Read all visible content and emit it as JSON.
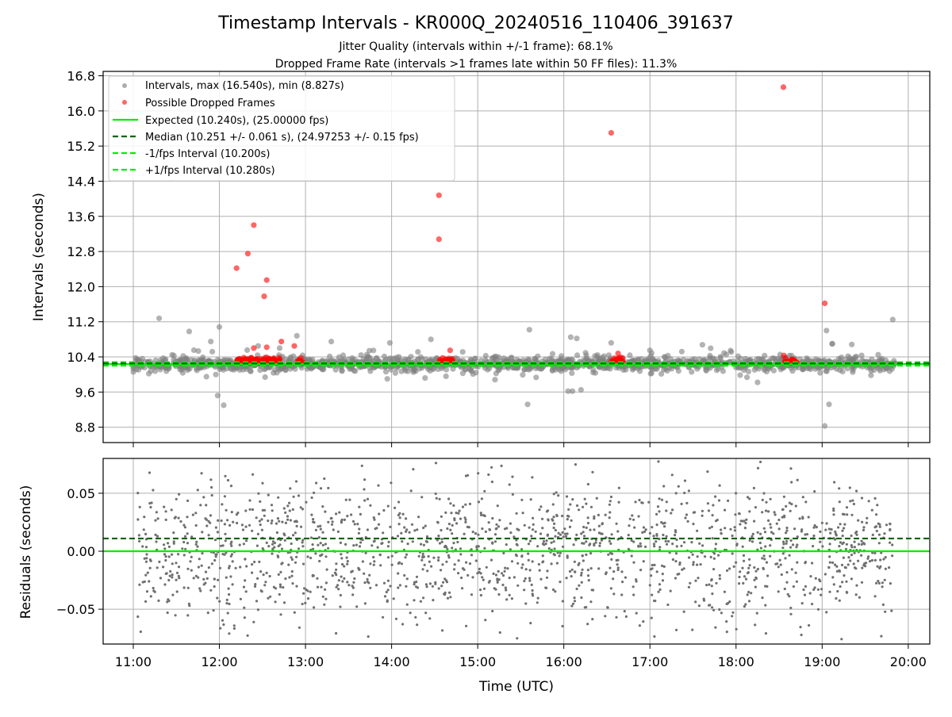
{
  "figure": {
    "title": "Timestamp Intervals - KR000Q_20240516_110406_391637",
    "subtitle_1": "Jitter Quality (intervals within +/-1 frame): 68.1%",
    "subtitle_2": "Dropped Frame Rate (intervals >1 frames late within 50 FF files): 11.3%"
  },
  "colors": {
    "interval_points": "#808080",
    "dropped_points": "#ff0000",
    "expected_line": "#00ee00",
    "median_line": "#006400",
    "fps_bounds": "#00ee00",
    "residual_points": "#707070",
    "grid": "#b0b0b0"
  },
  "chart_data": [
    {
      "type": "scatter",
      "ylabel": "Intervals (seconds)",
      "xlim": [
        10.65,
        20.25
      ],
      "ylim": [
        8.45,
        16.9
      ],
      "yticks": [
        8.8,
        9.6,
        10.4,
        11.2,
        12.0,
        12.8,
        13.6,
        14.4,
        15.2,
        16.0,
        16.8
      ],
      "ytick_labels": [
        "8.8",
        "9.6",
        "10.4",
        "11.2",
        "12.0",
        "12.8",
        "13.6",
        "14.4",
        "15.2",
        "16.0",
        "16.8"
      ],
      "grid": true,
      "legend_position": "top-left",
      "legend": [
        {
          "label": "Intervals, max (16.540s), min (8.827s)",
          "kind": "grey-dot"
        },
        {
          "label": "Possible Dropped Frames",
          "kind": "red-dot"
        },
        {
          "label": "Expected (10.240s), (25.00000 fps)",
          "kind": "solid-green"
        },
        {
          "label": "Median (10.251 +/- 0.061 s), (24.97253 +/- 0.15 fps)",
          "kind": "dashed-darkgreen"
        },
        {
          "label": "-1/fps Interval (10.200s)",
          "kind": "dashed-green"
        },
        {
          "label": "+1/fps Interval (10.280s)",
          "kind": "dashed-green"
        }
      ],
      "reference_lines": {
        "expected": 10.24,
        "median": 10.251,
        "minus_fps": 10.2,
        "plus_fps": 10.28
      },
      "series": [
        {
          "kind": "intervals",
          "time_range": [
            11.0,
            19.85
          ],
          "count": 1500,
          "baseline": 10.24,
          "spread": 0.08,
          "outliers": [
            [
              11.3,
              11.28
            ],
            [
              11.65,
              10.98
            ],
            [
              11.9,
              10.75
            ],
            [
              12.0,
              11.08
            ],
            [
              11.98,
              9.52
            ],
            [
              12.05,
              9.3
            ],
            [
              11.85,
              9.95
            ],
            [
              12.9,
              10.88
            ],
            [
              13.3,
              10.75
            ],
            [
              13.98,
              10.72
            ],
            [
              13.95,
              9.9
            ],
            [
              15.6,
              11.02
            ],
            [
              15.58,
              9.32
            ],
            [
              16.08,
              10.85
            ],
            [
              16.15,
              10.82
            ],
            [
              16.05,
              9.62
            ],
            [
              16.1,
              9.62
            ],
            [
              16.2,
              9.65
            ],
            [
              16.55,
              10.72
            ],
            [
              17.0,
              10.55
            ],
            [
              18.25,
              9.82
            ],
            [
              19.05,
              11.0
            ],
            [
              19.08,
              9.32
            ],
            [
              19.03,
              8.83
            ],
            [
              19.12,
              10.7
            ],
            [
              19.82,
              11.25
            ],
            [
              12.45,
              10.65
            ],
            [
              12.7,
              10.6
            ]
          ]
        },
        {
          "kind": "dropped_frames",
          "outliers": [
            [
              12.2,
              12.42
            ],
            [
              12.33,
              12.75
            ],
            [
              12.4,
              13.4
            ],
            [
              12.55,
              12.15
            ],
            [
              12.52,
              11.78
            ],
            [
              14.55,
              14.08
            ],
            [
              14.55,
              13.08
            ],
            [
              16.55,
              15.5
            ],
            [
              18.55,
              16.54
            ],
            [
              19.03,
              11.62
            ],
            [
              12.4,
              10.6
            ],
            [
              12.55,
              10.62
            ],
            [
              12.72,
              10.75
            ],
            [
              12.87,
              10.65
            ],
            [
              14.68,
              10.55
            ],
            [
              16.63,
              10.48
            ]
          ],
          "clusters": [
            {
              "t0": 12.2,
              "t1": 12.7,
              "count": 140
            },
            {
              "t0": 12.9,
              "t1": 12.98,
              "count": 14
            },
            {
              "t0": 14.55,
              "t1": 14.72,
              "count": 30
            },
            {
              "t0": 16.55,
              "t1": 16.7,
              "count": 22
            },
            {
              "t0": 18.55,
              "t1": 18.72,
              "count": 28
            }
          ]
        }
      ]
    },
    {
      "type": "scatter",
      "xlabel": "Time (UTC)",
      "ylabel": "Residuals (seconds)",
      "xlim": [
        10.65,
        20.25
      ],
      "ylim": [
        -0.08,
        0.08
      ],
      "yticks": [
        -0.05,
        0.0,
        0.05
      ],
      "ytick_labels": [
        "−0.05",
        "0.00",
        "0.05"
      ],
      "xticks": [
        11,
        12,
        13,
        14,
        15,
        16,
        17,
        18,
        19,
        20
      ],
      "xtick_labels": [
        "11:00",
        "12:00",
        "13:00",
        "14:00",
        "15:00",
        "16:00",
        "17:00",
        "18:00",
        "19:00",
        "20:00"
      ],
      "grid": true,
      "reference_lines": {
        "zero": 0.0,
        "median_offset": 0.011
      },
      "series": [
        {
          "kind": "residuals",
          "time_range": [
            11.05,
            19.82
          ],
          "count": 1700,
          "spread": 0.03
        }
      ]
    }
  ]
}
